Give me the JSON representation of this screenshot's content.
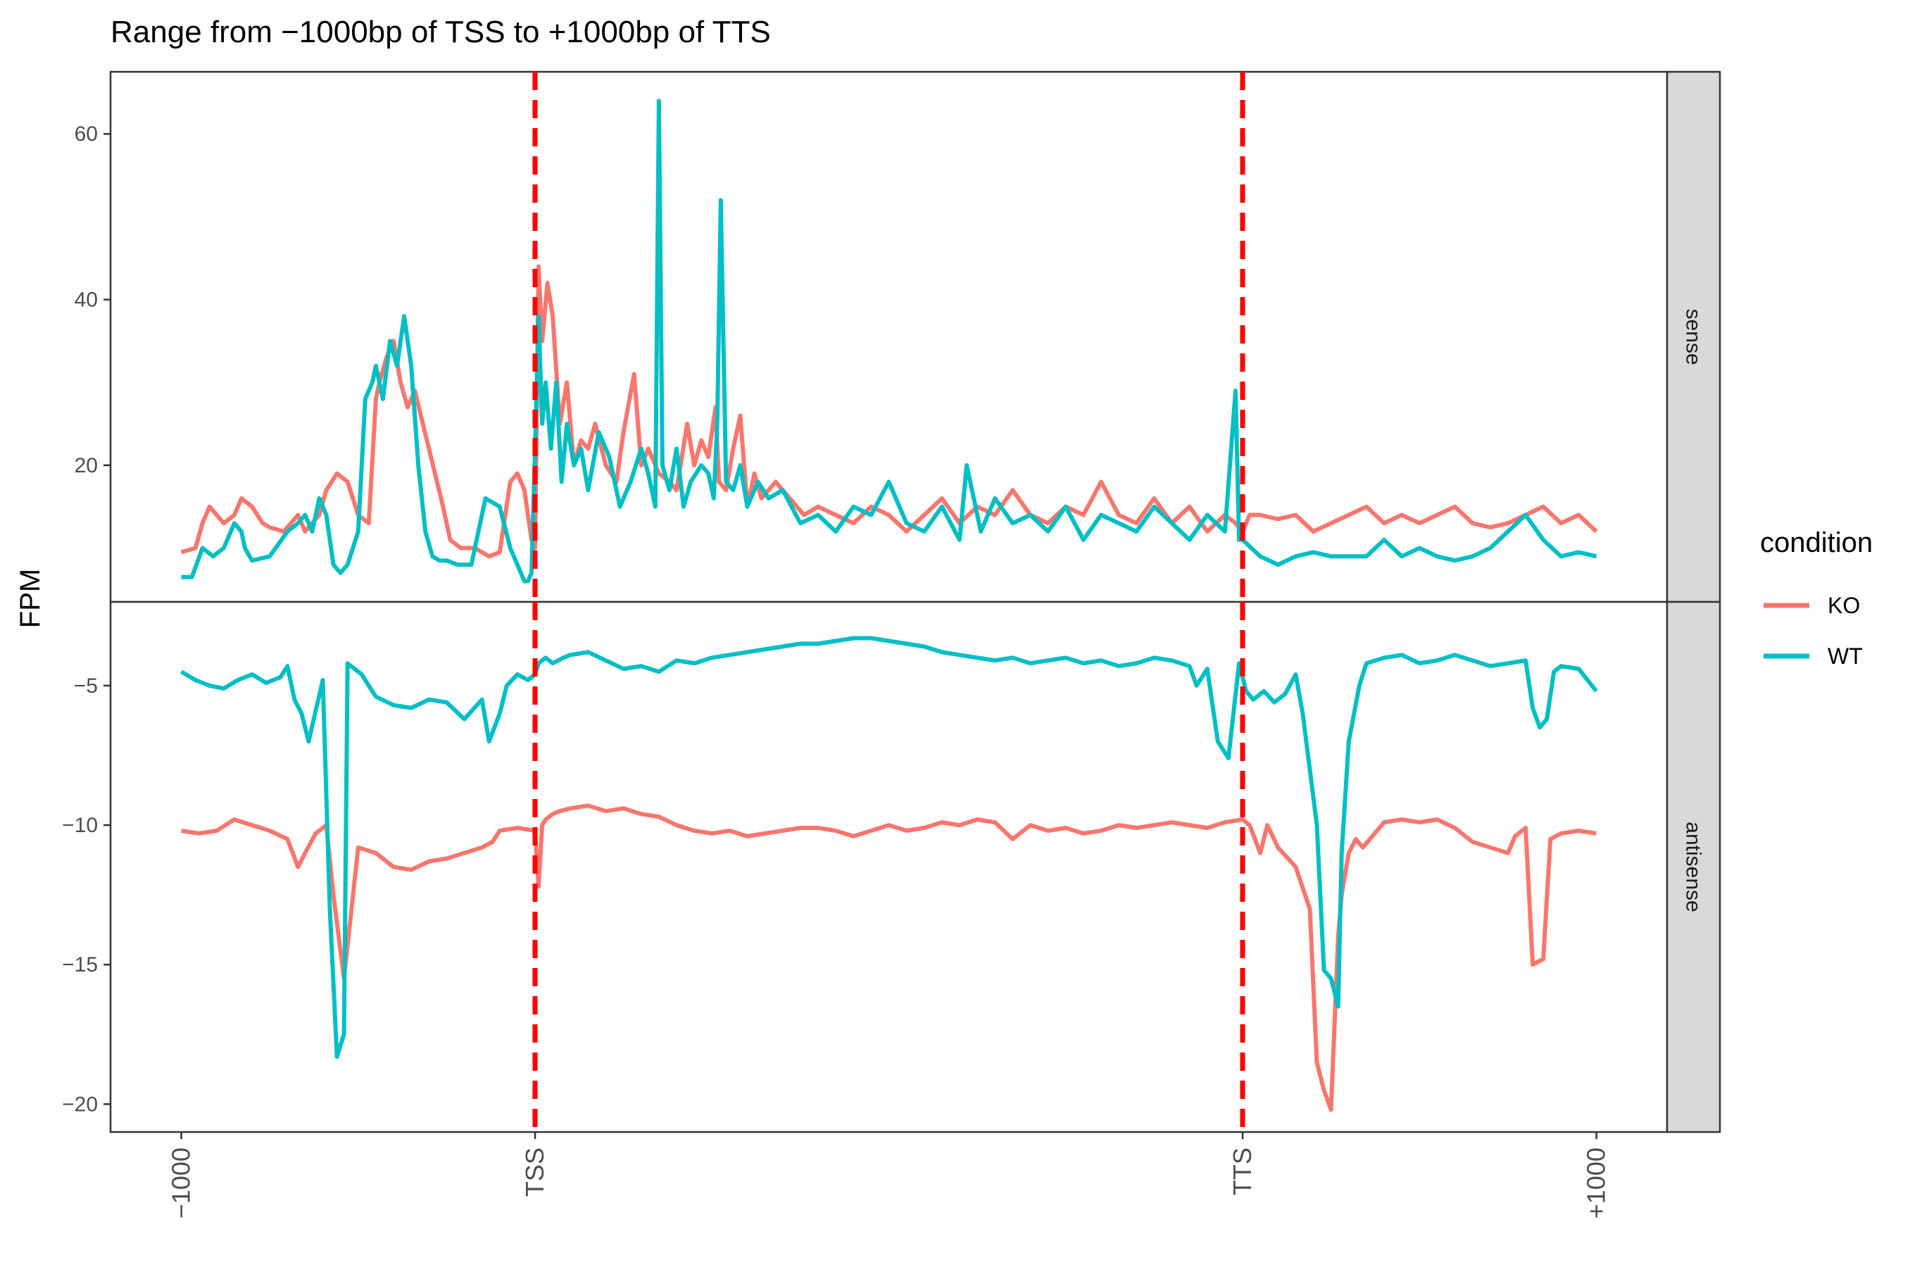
{
  "chart_data": {
    "type": "line",
    "title": "Range from −1000bp of TSS to +1000bp of TTS",
    "ylabel": "FPM",
    "xlabel": "",
    "x_ticks": [
      {
        "pos": 0,
        "label": "−1000"
      },
      {
        "pos": 1000,
        "label": "TSS"
      },
      {
        "pos": 3000,
        "label": "TTS"
      },
      {
        "pos": 4000,
        "label": "+1000"
      }
    ],
    "xlim": [
      -200,
      4200
    ],
    "vlines": [
      {
        "x": 1000,
        "color": "#ff0000",
        "style": "dashed"
      },
      {
        "x": 3000,
        "color": "#ff0000",
        "style": "dashed"
      }
    ],
    "legend": {
      "title": "condition",
      "position": "right",
      "entries": [
        {
          "name": "KO",
          "color": "#F8766D"
        },
        {
          "name": "WT",
          "color": "#00BFC4"
        }
      ]
    },
    "panels": [
      {
        "strip": "sense",
        "ylim": [
          3.5,
          67.5
        ],
        "yticks": [
          20,
          40,
          60
        ],
        "series": [
          {
            "name": "KO",
            "color": "#F8766D",
            "x": [
              0,
              40,
              60,
              80,
              120,
              150,
              170,
              200,
              230,
              250,
              290,
              330,
              350,
              370,
              390,
              410,
              440,
              470,
              500,
              530,
              550,
              560,
              580,
              600,
              620,
              640,
              660,
              700,
              740,
              760,
              790,
              810,
              830,
              870,
              900,
              930,
              950,
              970,
              990,
              1000,
              1010,
              1020,
              1035,
              1050,
              1070,
              1090,
              1110,
              1130,
              1150,
              1170,
              1200,
              1230,
              1250,
              1280,
              1300,
              1320,
              1350,
              1380,
              1400,
              1430,
              1450,
              1470,
              1490,
              1510,
              1520,
              1540,
              1560,
              1580,
              1600,
              1620,
              1640,
              1680,
              1720,
              1760,
              1800,
              1850,
              1900,
              1950,
              2000,
              2050,
              2100,
              2150,
              2200,
              2250,
              2300,
              2350,
              2400,
              2450,
              2500,
              2550,
              2600,
              2650,
              2700,
              2750,
              2800,
              2850,
              2900,
              2950,
              2980,
              3000,
              3020,
              3050,
              3100,
              3150,
              3200,
              3250,
              3300,
              3350,
              3400,
              3450,
              3500,
              3550,
              3600,
              3650,
              3700,
              3750,
              3800,
              3850,
              3900,
              3950,
              4000
            ],
            "y": [
              9.5,
              10,
              13,
              15,
              13,
              14,
              16,
              15,
              13,
              12.5,
              12,
              14,
              12,
              13,
              14,
              17,
              19,
              18,
              14,
              13,
              28,
              30,
              33,
              35,
              30,
              27,
              29,
              22,
              15,
              11,
              10,
              10,
              10,
              9,
              9.5,
              18,
              19,
              17,
              11,
              10,
              44,
              35,
              42,
              38,
              25,
              30,
              20,
              23,
              22,
              25,
              20,
              18,
              24,
              31,
              20,
              22,
              19,
              18,
              17,
              25,
              20,
              23,
              21,
              27,
              18,
              17,
              22,
              26,
              15,
              19,
              16,
              18,
              16,
              14,
              15,
              14,
              13,
              15,
              14,
              12,
              14,
              16,
              13,
              15,
              14,
              17,
              14,
              13,
              15,
              14,
              18,
              14,
              13,
              16,
              13,
              15,
              12,
              14,
              13,
              12,
              14,
              14,
              13.5,
              14,
              12,
              13,
              14,
              15,
              13,
              14,
              13,
              14,
              15,
              13,
              12.5,
              13,
              14,
              15,
              13,
              14,
              12
            ]
          },
          {
            "name": "WT",
            "color": "#00BFC4",
            "x": [
              0,
              30,
              60,
              90,
              120,
              150,
              170,
              180,
              200,
              250,
              300,
              330,
              350,
              370,
              390,
              410,
              430,
              450,
              470,
              500,
              520,
              540,
              550,
              570,
              590,
              610,
              630,
              650,
              670,
              690,
              710,
              730,
              750,
              780,
              820,
              860,
              900,
              930,
              950,
              970,
              980,
              990,
              1000,
              1010,
              1020,
              1030,
              1045,
              1060,
              1075,
              1090,
              1110,
              1130,
              1150,
              1180,
              1210,
              1240,
              1270,
              1300,
              1320,
              1340,
              1350,
              1360,
              1380,
              1400,
              1420,
              1440,
              1470,
              1490,
              1505,
              1515,
              1525,
              1540,
              1560,
              1580,
              1600,
              1630,
              1660,
              1700,
              1750,
              1800,
              1850,
              1900,
              1950,
              2000,
              2050,
              2100,
              2150,
              2200,
              2220,
              2260,
              2300,
              2350,
              2400,
              2450,
              2500,
              2550,
              2600,
              2650,
              2700,
              2750,
              2800,
              2850,
              2900,
              2950,
              2980,
              2990,
              3000,
              3050,
              3100,
              3150,
              3200,
              3250,
              3300,
              3350,
              3400,
              3450,
              3500,
              3550,
              3600,
              3650,
              3700,
              3750,
              3800,
              3850,
              3900,
              3950,
              4000
            ],
            "y": [
              6.5,
              6.5,
              10,
              9,
              10,
              13,
              12,
              10,
              8.5,
              9,
              12,
              13,
              14,
              12,
              16,
              14,
              8,
              7,
              8,
              12,
              28,
              30,
              32,
              28,
              35,
              32,
              38,
              32,
              20,
              12,
              9,
              8.5,
              8.5,
              8,
              8,
              16,
              15,
              10,
              8,
              6,
              6,
              7,
              22,
              38,
              25,
              30,
              22,
              30,
              18,
              25,
              20,
              22,
              17,
              24,
              21,
              15,
              18,
              22,
              19,
              15,
              64,
              20,
              17,
              22,
              15,
              18,
              20,
              19,
              16,
              25,
              52,
              18,
              17,
              20,
              15,
              18,
              16,
              17,
              13,
              14,
              12,
              15,
              14,
              18,
              13,
              12,
              15,
              11,
              20,
              12,
              16,
              13,
              14,
              12,
              15,
              11,
              14,
              13,
              12,
              15,
              13,
              11,
              14,
              12,
              29,
              11,
              11,
              9,
              8,
              9,
              9.5,
              9,
              9,
              9,
              11,
              9,
              10,
              9,
              8.5,
              9,
              10,
              12,
              14,
              11,
              9,
              9.5,
              9
            ]
          }
        ]
      },
      {
        "strip": "antisense",
        "ylim": [
          -21,
          -2
        ],
        "yticks": [
          -20,
          -15,
          -10,
          -5
        ],
        "series": [
          {
            "name": "KO",
            "color": "#F8766D",
            "x": [
              0,
              50,
              100,
              150,
              200,
              250,
              300,
              330,
              350,
              380,
              410,
              430,
              460,
              500,
              550,
              600,
              650,
              700,
              750,
              800,
              850,
              880,
              900,
              950,
              1000,
              1010,
              1020,
              1030,
              1050,
              1070,
              1100,
              1150,
              1200,
              1250,
              1300,
              1350,
              1400,
              1450,
              1500,
              1550,
              1600,
              1650,
              1700,
              1750,
              1800,
              1850,
              1900,
              1950,
              2000,
              2050,
              2100,
              2150,
              2200,
              2250,
              2300,
              2350,
              2400,
              2450,
              2500,
              2550,
              2600,
              2650,
              2700,
              2750,
              2800,
              2850,
              2900,
              2950,
              3000,
              3020,
              3050,
              3070,
              3100,
              3150,
              3190,
              3210,
              3230,
              3250,
              3270,
              3280,
              3300,
              3320,
              3340,
              3360,
              3400,
              3450,
              3500,
              3550,
              3600,
              3650,
              3700,
              3750,
              3770,
              3800,
              3820,
              3850,
              3870,
              3900,
              3950,
              4000
            ],
            "y": [
              -10.2,
              -10.3,
              -10.2,
              -9.8,
              -10,
              -10.2,
              -10.5,
              -11.5,
              -11,
              -10.3,
              -10,
              -12.5,
              -15.5,
              -10.8,
              -11,
              -11.5,
              -11.6,
              -11.3,
              -11.2,
              -11,
              -10.8,
              -10.6,
              -10.2,
              -10.1,
              -10.2,
              -12.2,
              -10,
              -9.8,
              -9.6,
              -9.5,
              -9.4,
              -9.3,
              -9.5,
              -9.4,
              -9.6,
              -9.7,
              -10,
              -10.2,
              -10.3,
              -10.2,
              -10.4,
              -10.3,
              -10.2,
              -10.1,
              -10.1,
              -10.2,
              -10.4,
              -10.2,
              -10,
              -10.2,
              -10.1,
              -9.9,
              -10,
              -9.8,
              -9.9,
              -10.5,
              -10,
              -10.2,
              -10.1,
              -10.3,
              -10.2,
              -10,
              -10.1,
              -10,
              -9.9,
              -10,
              -10.1,
              -9.9,
              -9.8,
              -10,
              -11,
              -10,
              -10.8,
              -11.5,
              -13,
              -18.5,
              -19.5,
              -20.2,
              -14,
              -12.5,
              -11,
              -10.5,
              -10.8,
              -10.5,
              -9.9,
              -9.8,
              -9.9,
              -9.8,
              -10.1,
              -10.6,
              -10.8,
              -11,
              -10.4,
              -10.1,
              -15,
              -14.8,
              -10.5,
              -10.3,
              -10.2,
              -10.3
            ]
          },
          {
            "name": "WT",
            "color": "#00BFC4",
            "x": [
              0,
              40,
              80,
              120,
              160,
              200,
              240,
              280,
              300,
              320,
              340,
              360,
              400,
              420,
              440,
              460,
              470,
              490,
              510,
              530,
              550,
              600,
              650,
              700,
              750,
              800,
              850,
              870,
              900,
              920,
              950,
              980,
              1000,
              1010,
              1020,
              1030,
              1050,
              1080,
              1100,
              1150,
              1200,
              1250,
              1300,
              1350,
              1400,
              1450,
              1500,
              1550,
              1600,
              1650,
              1700,
              1750,
              1800,
              1850,
              1900,
              1950,
              2000,
              2050,
              2100,
              2150,
              2200,
              2250,
              2300,
              2350,
              2400,
              2450,
              2500,
              2550,
              2600,
              2650,
              2700,
              2750,
              2800,
              2850,
              2870,
              2900,
              2930,
              2960,
              2990,
              3010,
              3030,
              3060,
              3090,
              3120,
              3150,
              3170,
              3190,
              3210,
              3230,
              3250,
              3270,
              3280,
              3300,
              3330,
              3350,
              3400,
              3450,
              3500,
              3550,
              3600,
              3650,
              3700,
              3750,
              3800,
              3820,
              3840,
              3860,
              3880,
              3900,
              3950,
              4000
            ],
            "y": [
              -4.5,
              -4.8,
              -5,
              -5.1,
              -4.8,
              -4.6,
              -4.9,
              -4.7,
              -4.3,
              -5.5,
              -6,
              -7,
              -4.8,
              -13,
              -18.3,
              -17.5,
              -4.2,
              -4.4,
              -4.6,
              -5,
              -5.4,
              -5.7,
              -5.8,
              -5.5,
              -5.6,
              -6.2,
              -5.5,
              -7,
              -6,
              -5,
              -4.6,
              -4.8,
              -4.6,
              -4.2,
              -4.1,
              -4,
              -4.2,
              -4,
              -3.9,
              -3.8,
              -4.1,
              -4.4,
              -4.3,
              -4.5,
              -4.1,
              -4.2,
              -4,
              -3.9,
              -3.8,
              -3.7,
              -3.6,
              -3.5,
              -3.5,
              -3.4,
              -3.3,
              -3.3,
              -3.4,
              -3.5,
              -3.6,
              -3.8,
              -3.9,
              -4,
              -4.1,
              -4,
              -4.2,
              -4.1,
              -4,
              -4.2,
              -4.1,
              -4.3,
              -4.2,
              -4,
              -4.1,
              -4.3,
              -5,
              -4.4,
              -7,
              -7.6,
              -4.2,
              -5.2,
              -5.5,
              -5.2,
              -5.6,
              -5.3,
              -4.6,
              -6,
              -8,
              -10,
              -15.2,
              -15.5,
              -16.5,
              -11,
              -7,
              -5,
              -4.2,
              -4,
              -3.9,
              -4.2,
              -4.1,
              -3.9,
              -4.1,
              -4.3,
              -4.2,
              -4.1,
              -5.8,
              -6.5,
              -6.2,
              -4.5,
              -4.3,
              -4.4,
              -5.2
            ]
          }
        ]
      }
    ]
  }
}
